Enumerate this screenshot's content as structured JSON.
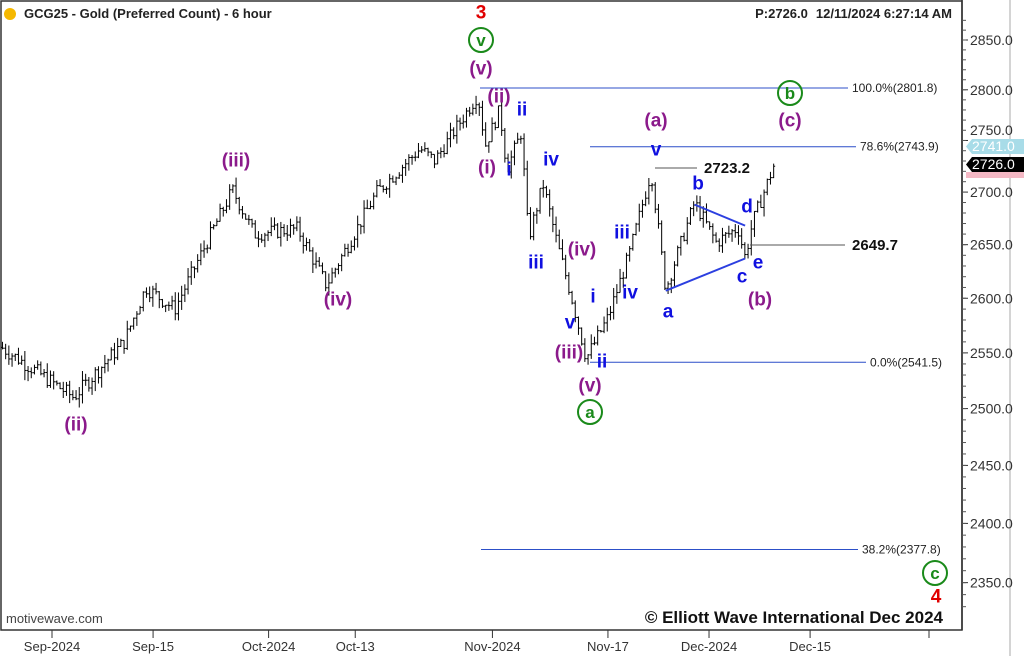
{
  "header": {
    "title": "GCG25 - Gold (Preferred Count) - 6 hour",
    "status_dot_color": "#f5b800",
    "price_info": "P:2726.0",
    "timestamp": "12/11/2024 6:27:14 AM"
  },
  "footer": {
    "watermark": "motivewave.com",
    "copyright": "© Elliott Wave International Dec 2024"
  },
  "price_tags": {
    "upper": "2741.0",
    "last": "2726.0"
  },
  "colors": {
    "purple": "#8b1a8b",
    "blue": "#1010e0",
    "green": "#1a8a1a",
    "red": "#e00000",
    "fib_line": "#2c4fc8"
  },
  "annotations": [
    {
      "text": "3",
      "color": "red"
    },
    {
      "text": "v",
      "color": "green",
      "circled": true
    },
    {
      "text": "(v)",
      "color": "purple"
    },
    {
      "text": "(ii)",
      "color": "purple"
    },
    {
      "text": "ii",
      "color": "blue"
    },
    {
      "text": "(i)",
      "color": "purple"
    },
    {
      "text": "i",
      "color": "blue"
    },
    {
      "text": "iv",
      "color": "blue"
    },
    {
      "text": "iii",
      "color": "blue"
    },
    {
      "text": "(iv)",
      "color": "purple"
    },
    {
      "text": "i",
      "color": "blue"
    },
    {
      "text": "iv",
      "color": "blue"
    },
    {
      "text": "iii",
      "color": "blue"
    },
    {
      "text": "v",
      "color": "blue"
    },
    {
      "text": "(iii)",
      "color": "purple"
    },
    {
      "text": "ii",
      "color": "blue"
    },
    {
      "text": "(v)",
      "color": "purple"
    },
    {
      "text": "a",
      "color": "green",
      "circled": true
    },
    {
      "text": "(iii)",
      "color": "purple"
    },
    {
      "text": "(iv)",
      "color": "purple"
    },
    {
      "text": "(ii)",
      "color": "purple"
    },
    {
      "text": "(a)",
      "color": "purple"
    },
    {
      "text": "v",
      "color": "blue"
    },
    {
      "text": "b",
      "color": "blue"
    },
    {
      "text": "d",
      "color": "blue"
    },
    {
      "text": "e",
      "color": "blue"
    },
    {
      "text": "c",
      "color": "blue"
    },
    {
      "text": "(b)",
      "color": "purple"
    },
    {
      "text": "a",
      "color": "blue"
    },
    {
      "text": "b",
      "color": "green",
      "circled": true
    },
    {
      "text": "(c)",
      "color": "purple"
    },
    {
      "text": "c",
      "color": "green",
      "circled": true
    },
    {
      "text": "4",
      "color": "red"
    }
  ],
  "chart_data": {
    "type": "ohlc",
    "title": "GCG25 - Gold (Preferred Count) - 6 hour",
    "y_scale": "log",
    "ylim": [
      2320,
      2880
    ],
    "y_ticks": [
      "2350.0",
      "2400.0",
      "2450.0",
      "2500.0",
      "2550.0",
      "2600.0",
      "2650.0",
      "2700.0",
      "2750.0",
      "2800.0",
      "2850.0"
    ],
    "x_ticks": [
      {
        "label": "Sep-2024",
        "date": "2024-09-01"
      },
      {
        "label": "Sep-15",
        "date": "2024-09-15"
      },
      {
        "label": "Oct-2024",
        "date": "2024-10-01"
      },
      {
        "label": "Oct-13",
        "date": "2024-10-13"
      },
      {
        "label": "Nov-2024",
        "date": "2024-11-01"
      },
      {
        "label": "Nov-17",
        "date": "2024-11-17"
      },
      {
        "label": "Dec-2024",
        "date": "2024-12-01"
      },
      {
        "label": "Dec-15",
        "date": "2024-12-15"
      }
    ],
    "approx_price_path": [
      [
        "2024-08-25",
        2555
      ],
      [
        "2024-09-04",
        2510
      ],
      [
        "2024-09-11",
        2560
      ],
      [
        "2024-09-14",
        2610
      ],
      [
        "2024-09-18",
        2590
      ],
      [
        "2024-09-26",
        2702
      ],
      [
        "2024-09-29",
        2660
      ],
      [
        "2024-10-05",
        2665
      ],
      [
        "2024-10-09",
        2612
      ],
      [
        "2024-10-16",
        2700
      ],
      [
        "2024-10-22",
        2742
      ],
      [
        "2024-10-24",
        2730
      ],
      [
        "2024-10-30",
        2795
      ],
      [
        "2024-10-31",
        2745
      ],
      [
        "2024-11-02",
        2780
      ],
      [
        "2024-11-03",
        2722
      ],
      [
        "2024-11-05",
        2758
      ],
      [
        "2024-11-06",
        2655
      ],
      [
        "2024-11-08",
        2708
      ],
      [
        "2024-11-10",
        2650
      ],
      [
        "2024-11-12",
        2600
      ],
      [
        "2024-11-14",
        2545
      ],
      [
        "2024-11-17",
        2582
      ],
      [
        "2024-11-20",
        2642
      ],
      [
        "2024-11-23",
        2720
      ],
      [
        "2024-11-25",
        2608
      ],
      [
        "2024-11-29",
        2690
      ],
      [
        "2024-12-02",
        2652
      ],
      [
        "2024-12-05",
        2666
      ],
      [
        "2024-12-06",
        2638
      ],
      [
        "2024-12-07",
        2670
      ],
      [
        "2024-12-10",
        2726
      ]
    ],
    "last_price": 2726.0,
    "fib_levels": [
      {
        "label": "100.0%(2801.8)",
        "price": 2801.8
      },
      {
        "label": "78.6%(2743.9)",
        "price": 2743.9
      },
      {
        "label": "0.0%(2541.5)",
        "price": 2541.5
      },
      {
        "label": "38.2%(2377.8)",
        "price": 2377.8
      }
    ],
    "price_marks": [
      {
        "label": "2723.2",
        "price": 2723.2
      },
      {
        "label": "2649.7",
        "price": 2649.7
      }
    ],
    "triangle_points": [
      [
        "2024-11-25",
        2607
      ],
      [
        "2024-12-06",
        2637
      ],
      [
        "2024-11-29",
        2688
      ],
      [
        "2024-12-06",
        2668
      ]
    ]
  }
}
